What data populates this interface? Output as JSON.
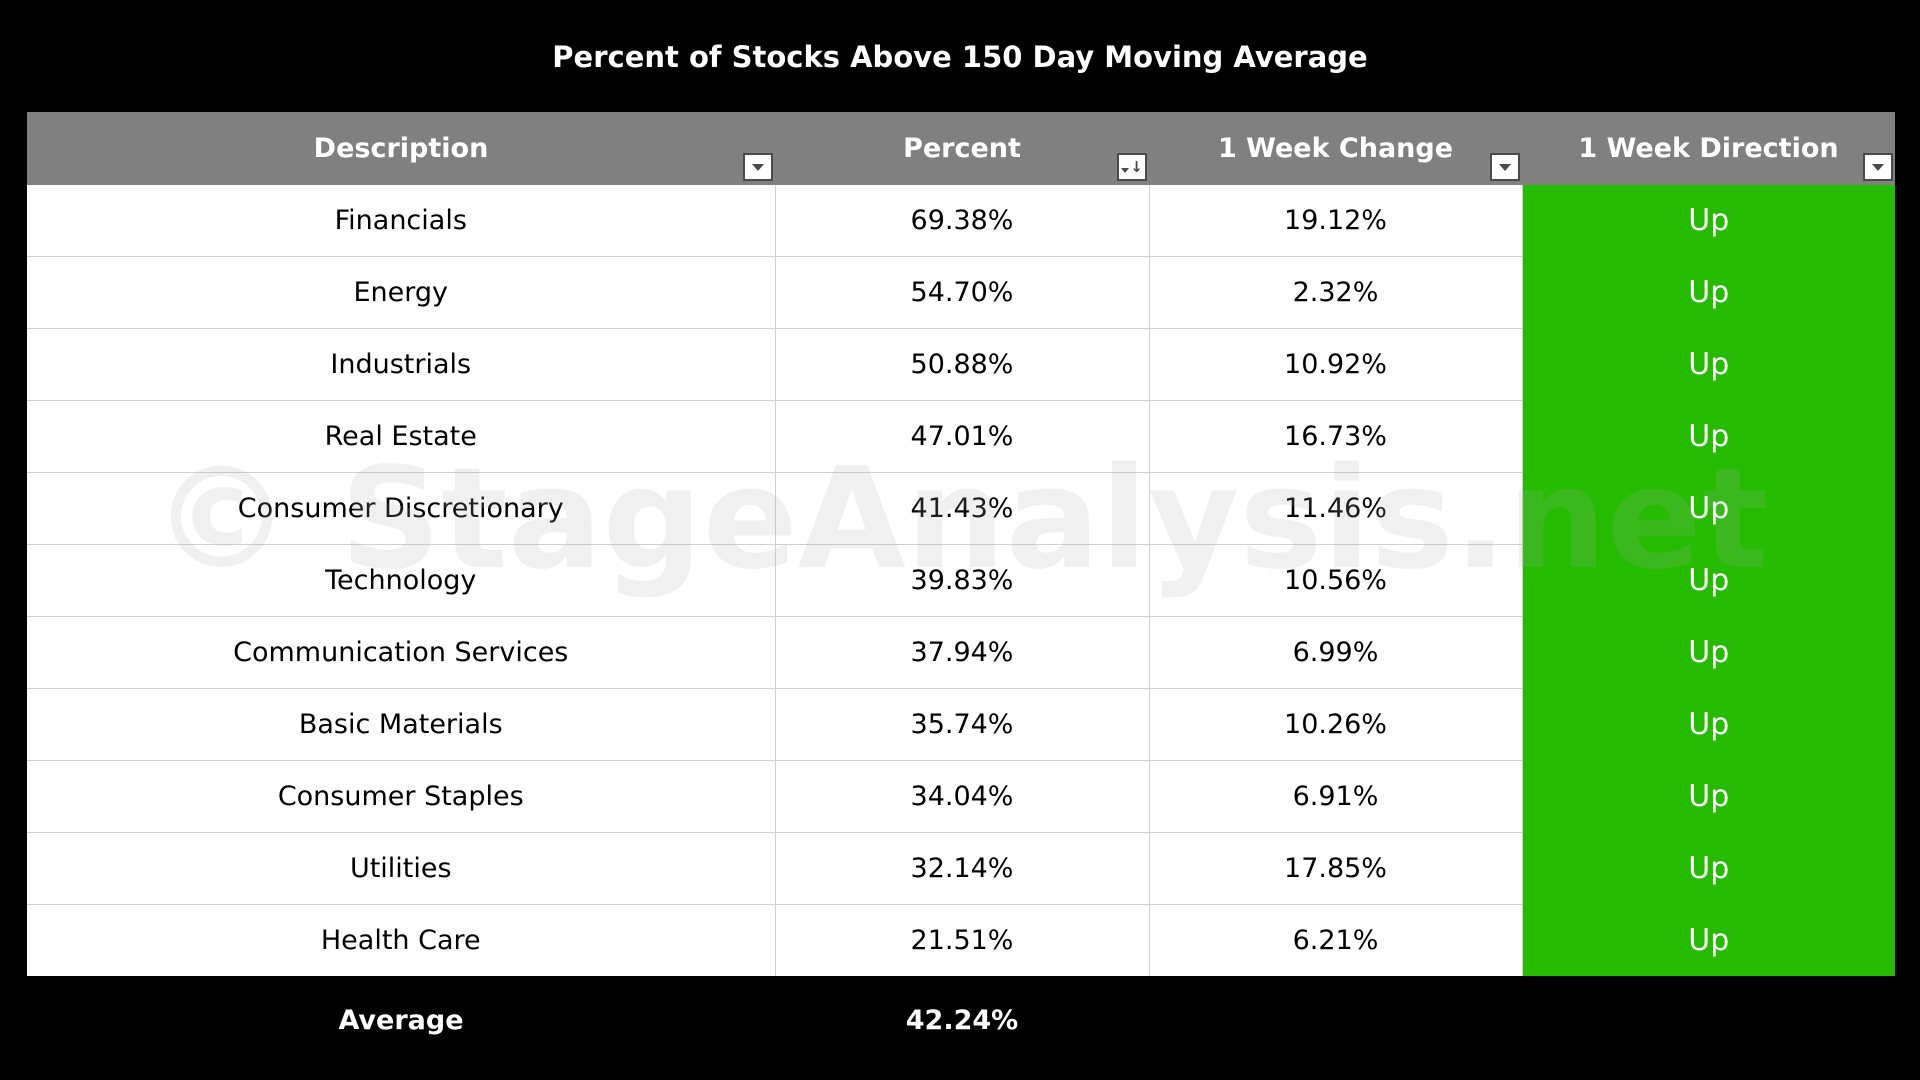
{
  "chart_data": {
    "type": "table",
    "title": "Percent of Stocks Above 150 Day Moving Average",
    "columns": [
      "Description",
      "Percent",
      "1 Week Change",
      "1 Week Direction"
    ],
    "rows": [
      {
        "description": "Financials",
        "percent": "69.38%",
        "change": "19.12%",
        "direction": "Up"
      },
      {
        "description": "Energy",
        "percent": "54.70%",
        "change": "2.32%",
        "direction": "Up"
      },
      {
        "description": "Industrials",
        "percent": "50.88%",
        "change": "10.92%",
        "direction": "Up"
      },
      {
        "description": "Real Estate",
        "percent": "47.01%",
        "change": "16.73%",
        "direction": "Up"
      },
      {
        "description": "Consumer Discretionary",
        "percent": "41.43%",
        "change": "11.46%",
        "direction": "Up"
      },
      {
        "description": "Technology",
        "percent": "39.83%",
        "change": "10.56%",
        "direction": "Up"
      },
      {
        "description": "Communication Services",
        "percent": "37.94%",
        "change": "6.99%",
        "direction": "Up"
      },
      {
        "description": "Basic Materials",
        "percent": "35.74%",
        "change": "10.26%",
        "direction": "Up"
      },
      {
        "description": "Consumer Staples",
        "percent": "34.04%",
        "change": "6.91%",
        "direction": "Up"
      },
      {
        "description": "Utilities",
        "percent": "32.14%",
        "change": "17.85%",
        "direction": "Up"
      },
      {
        "description": "Health Care",
        "percent": "21.51%",
        "change": "6.21%",
        "direction": "Up"
      }
    ],
    "footer": {
      "label": "Average",
      "percent": "42.24%"
    },
    "watermark": "© StageAnalysis.net",
    "sort_column": "Percent",
    "colors": {
      "background": "#000000",
      "header": "#808080",
      "direction_up": "#24bb00",
      "text_light": "#ffffff",
      "text_dark": "#000000"
    },
    "icons": {
      "filter": "filter-dropdown-icon",
      "sort": "sort-descending-icon"
    }
  }
}
